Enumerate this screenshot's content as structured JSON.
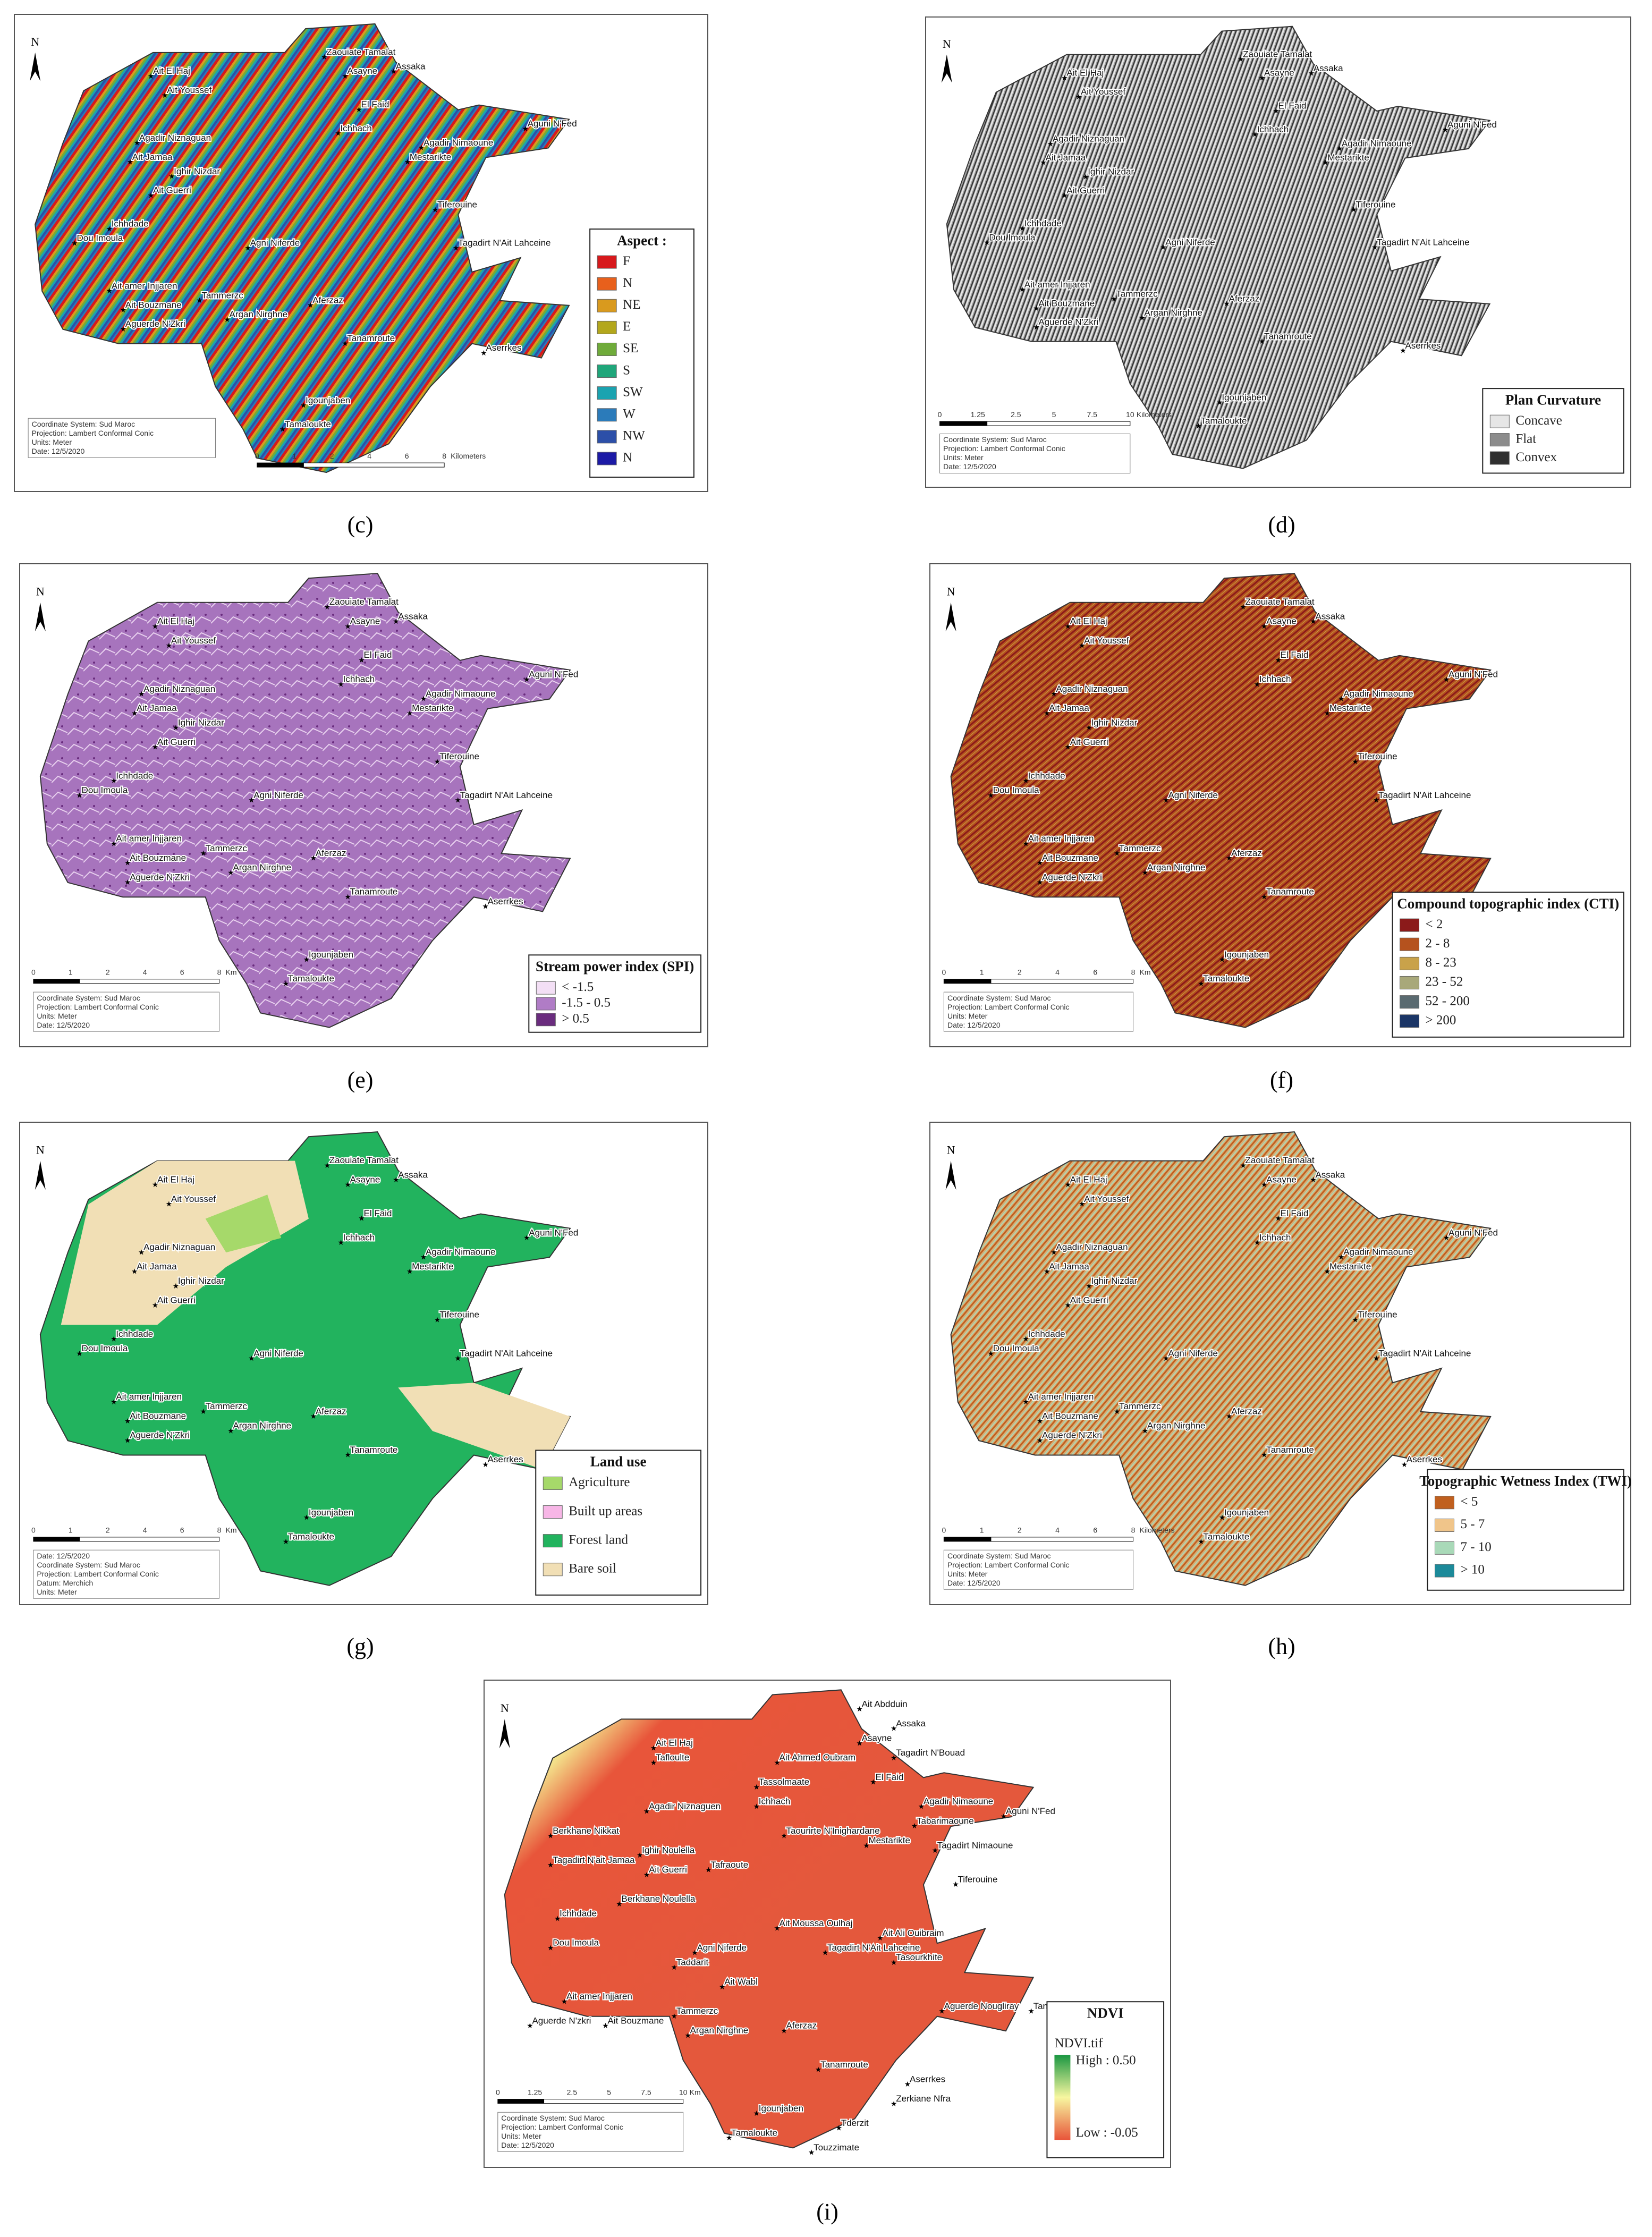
{
  "common_places": [
    "Zaouiate Tamalat",
    "Asayne",
    "Assaka",
    "Ait El Haj",
    "Ait Youssef",
    "El Faid",
    "Ichhach",
    "Aguni N'Fed",
    "Agadir Niznaguan",
    "Agadir Nimaoune",
    "Ait Jamaa",
    "Ighir Nizdar",
    "Mestarikte",
    "Ait Guerri",
    "Tiferouine",
    "Ichhdade",
    "Dou Imoula",
    "Agni Niferde",
    "Tagadirt N'Ait Lahceine",
    "Ait amer Injjaren",
    "Tammerzc",
    "Ait Bouzmane",
    "Argan Nirghne",
    "Aferzaz",
    "Aguerde N'Zkri",
    "Tanamroute",
    "Aserrkes",
    "Igounjaben",
    "Tamaloukte"
  ],
  "panels": [
    {
      "caption": "(c)",
      "north": "N",
      "legend": {
        "title": "Aspect :",
        "items": [
          {
            "label": "F",
            "color": "#d7191c"
          },
          {
            "label": "N",
            "color": "#e8601c"
          },
          {
            "label": "NE",
            "color": "#d99a1e"
          },
          {
            "label": "E",
            "color": "#b3a71c"
          },
          {
            "label": "SE",
            "color": "#6fab3a"
          },
          {
            "label": "S",
            "color": "#1fa67a"
          },
          {
            "label": "SW",
            "color": "#1aa3b0"
          },
          {
            "label": "W",
            "color": "#2b7bba"
          },
          {
            "label": "NW",
            "color": "#2c4fa8"
          },
          {
            "label": "N",
            "color": "#1c1aa6"
          }
        ]
      },
      "notes": [
        "Coordinate System: Sud Maroc",
        "Projection: Lambert Conformal Conic",
        "Units: Meter",
        "Date: 12/5/2020"
      ],
      "scale": [
        "0",
        "1",
        "2",
        "4",
        "6",
        "8",
        "Kilometers"
      ]
    },
    {
      "caption": "(d)",
      "north": "N",
      "legend": {
        "title": "Plan Curvature",
        "items": [
          {
            "label": "Concave",
            "color": "#e6e6e6"
          },
          {
            "label": "Flat",
            "color": "#8c8c8c"
          },
          {
            "label": "Convex",
            "color": "#303030"
          }
        ]
      },
      "notes": [
        "Coordinate System: Sud Maroc",
        "Projection: Lambert Conformal Conic",
        "Units: Meter",
        "Date: 12/5/2020"
      ],
      "scale": [
        "0",
        "1.25",
        "2.5",
        "5",
        "7.5",
        "10",
        "Kilometers"
      ]
    },
    {
      "caption": "(e)",
      "north": "N",
      "legend": {
        "title": "Stream power index (SPI)",
        "items": [
          {
            "label": "< -1.5",
            "color": "#f3dff5"
          },
          {
            "label": "-1.5 - 0.5",
            "color": "#b07cc6"
          },
          {
            "label": "> 0.5",
            "color": "#6a2c7e"
          }
        ]
      },
      "notes": [
        "Coordinate System: Sud Maroc",
        "Projection: Lambert Conformal Conic",
        "Units: Meter",
        "Date: 12/5/2020"
      ],
      "scale": [
        "0",
        "1",
        "2",
        "4",
        "6",
        "8",
        "Km"
      ]
    },
    {
      "caption": "(f)",
      "north": "N",
      "legend": {
        "title": "Compound topographic index (CTI)",
        "items": [
          {
            "label": "< 2",
            "color": "#8b1a1a"
          },
          {
            "label": "2 - 8",
            "color": "#b5521e"
          },
          {
            "label": "8 - 23",
            "color": "#c9a24a"
          },
          {
            "label": "23 - 52",
            "color": "#a8a87a"
          },
          {
            "label": "52 - 200",
            "color": "#5a6a70"
          },
          {
            "label": "> 200",
            "color": "#1a3566"
          }
        ]
      },
      "notes": [
        "Coordinate System: Sud Maroc",
        "Projection: Lambert Conformal Conic",
        "Units: Meter",
        "Date: 12/5/2020"
      ],
      "scale": [
        "0",
        "1",
        "2",
        "4",
        "6",
        "8",
        "Km"
      ]
    },
    {
      "caption": "(g)",
      "north": "N",
      "legend": {
        "title": "Land use",
        "items": [
          {
            "label": "Agriculture",
            "color": "#a6d96a"
          },
          {
            "label": "Built up areas",
            "color": "#f7b6e6"
          },
          {
            "label": "Forest land",
            "color": "#22b35e"
          },
          {
            "label": "Bare soil",
            "color": "#f1dfb5"
          }
        ]
      },
      "notes": [
        "Date: 12/5/2020",
        "Coordinate System: Sud Maroc",
        "Projection: Lambert Conformal Conic",
        "Datum: Merchich",
        "Units: Meter"
      ],
      "scale": [
        "0",
        "1",
        "2",
        "4",
        "6",
        "8",
        "Km"
      ]
    },
    {
      "caption": "(h)",
      "north": "N",
      "legend": {
        "title": "Topographic Wetness Index (TWI)",
        "items": [
          {
            "label": "< 5",
            "color": "#c0601f"
          },
          {
            "label": "5 - 7",
            "color": "#f0c58a"
          },
          {
            "label": "7 - 10",
            "color": "#a9d9b8"
          },
          {
            "label": "> 10",
            "color": "#1c8a9a"
          }
        ]
      },
      "notes": [
        "Coordinate System: Sud Maroc",
        "Projection: Lambert Conformal Conic",
        "Units: Meter",
        "Date: 12/5/2020"
      ],
      "scale": [
        "0",
        "1",
        "2",
        "4",
        "6",
        "8",
        "Kilometers"
      ]
    },
    {
      "caption": "(i)",
      "north": "N",
      "legend": {
        "title": "NDVI",
        "subtitle": "NDVI.tif",
        "items": [
          {
            "label": "High : 0.50",
            "color": "#1a9641"
          },
          {
            "label": "Low : -0.05",
            "color": "#e8553a"
          }
        ]
      },
      "notes": [
        "Coordinate System: Sud Maroc",
        "Projection: Lambert Conformal Conic",
        "Units: Meter",
        "Date: 12/5/2020"
      ],
      "scale": [
        "0",
        "1.25",
        "2.5",
        "5",
        "7.5",
        "10",
        "Km"
      ],
      "places": [
        "Ait Abdduin",
        "Ait El Haj",
        "Tafloulte",
        "Ait Ahmed Oubram",
        "Asayne",
        "Assaka",
        "Tagadirt N'Bouad",
        "Tassolmaate",
        "El Faid",
        "Ichhach",
        "Agadir Nimaoune",
        "Aguni N'Fed",
        "Agadir Niznaguen",
        "Tabarimaoune",
        "Berkhane Nikkat",
        "Taourirte N'Inighardane",
        "Mestarikte",
        "Tagadirt Nimaoune",
        "Ighir Noulella",
        "Tagadirt N'ait Jamaa",
        "Ait Guerri",
        "Tafraoute",
        "Tiferouine",
        "Berkhane Noulella",
        "Ichhdade",
        "Ait Moussa Oulhaj",
        "Ait Ali Ouibraim",
        "Dou Imoula",
        "Agni Niferde",
        "Tagadirt N'Ait Lahceine",
        "Taddarit",
        "Tasourkhite",
        "Ait Wabl",
        "Ait amer Injjaren",
        "Aguerde Nougliray",
        "Tanutit",
        "Aguerde N'zkri",
        "Ait Bouzmane",
        "Tammerzc",
        "Argan Nirghne",
        "Aferzaz",
        "Tanamroute",
        "Aserrkes",
        "Tderzit",
        "Zerkiane Nfra",
        "Igounjaben",
        "Tamaloukte",
        "Touzzimate"
      ]
    }
  ]
}
